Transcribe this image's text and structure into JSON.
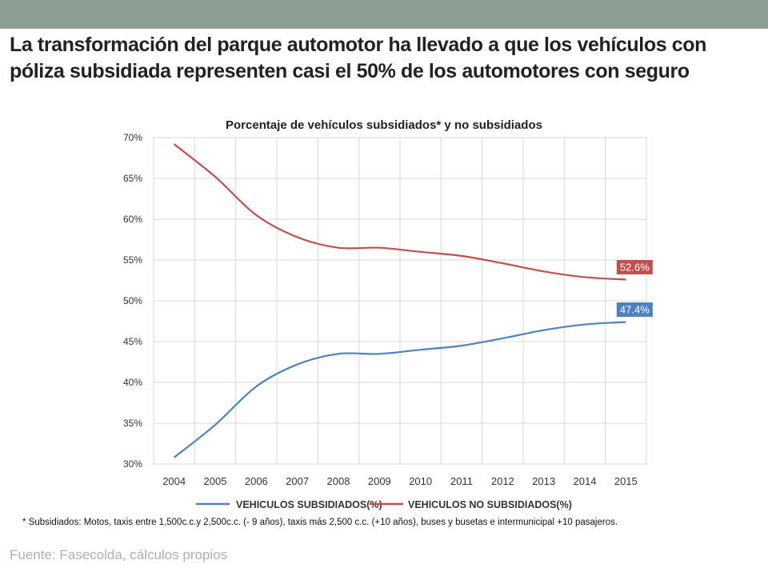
{
  "slide": {
    "title": "La transformación del parque automotor ha llevado a que los vehículos con póliza subsidiada representen casi el 50% de los automotores con seguro",
    "footnote": "* Subsidiados: Motos, taxis entre 1,500c.c.y 2,500c.c. (- 9 años), taxis más 2,500 c.c. (+10 años), buses y busetas e intermunicipal +10 pasajeros.",
    "source": "Fuente: Fasecolda, cálculos propios"
  },
  "colors": {
    "header_band": "#8c9f93",
    "subsidiados": "#4f81bd",
    "no_subsidiados": "#c0504d",
    "grid": "#d9d9d9"
  },
  "chart_data": {
    "type": "line",
    "title": "Porcentaje de vehículos subsidiados* y no subsidiados",
    "xlabel": "",
    "ylabel": "",
    "categories": [
      "2004",
      "2005",
      "2006",
      "2007",
      "2008",
      "2009",
      "2010",
      "2011",
      "2012",
      "2013",
      "2014",
      "2015"
    ],
    "ylim": [
      30,
      70
    ],
    "yticks": [
      30,
      35,
      40,
      45,
      50,
      55,
      60,
      65,
      70
    ],
    "ytick_format": "%",
    "grid": true,
    "legend": "bottom",
    "series": [
      {
        "name": "VEHICULOS SUBSIDIADOS(%)",
        "color": "#4f81bd",
        "values": [
          30.8,
          34.8,
          39.5,
          42.2,
          43.5,
          43.5,
          44.0,
          44.5,
          45.4,
          46.4,
          47.1,
          47.4
        ],
        "end_label": "47.4%"
      },
      {
        "name": "VEHICULOS NO SUBSIDIADOS(%)",
        "color": "#c0504d",
        "values": [
          69.2,
          65.2,
          60.5,
          57.8,
          56.5,
          56.5,
          56.0,
          55.5,
          54.6,
          53.6,
          52.9,
          52.6
        ],
        "end_label": "52.6%"
      }
    ]
  }
}
